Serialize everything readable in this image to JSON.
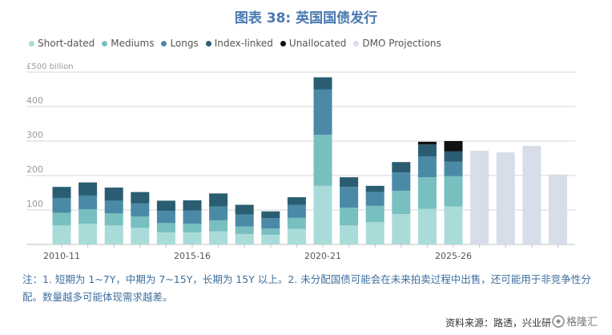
{
  "title": "图表 38: 英国国债发行",
  "legend": [
    {
      "label": "Short-dated",
      "color": "#a9dcd8"
    },
    {
      "label": "Mediums",
      "color": "#78bfc0"
    },
    {
      "label": "Longs",
      "color": "#4a8aa7"
    },
    {
      "label": "Index-linked",
      "color": "#2a5d72"
    },
    {
      "label": "Unallocated",
      "color": "#111111"
    },
    {
      "label": "DMO Projections",
      "color": "#d7dde9"
    }
  ],
  "chart_data": {
    "type": "bar",
    "stacked": true,
    "x_tick_labels": [
      "2010-11",
      "2015-16",
      "2020-21",
      "2025-26"
    ],
    "y_tick_labels": [
      "£500 billion",
      "400",
      "300",
      "200",
      "100"
    ],
    "ylim": [
      0,
      500
    ],
    "grid": true,
    "legend_position": "top",
    "series": [
      {
        "name": "Short-dated",
        "values": [
          55,
          60,
          55,
          48,
          35,
          35,
          38,
          30,
          28,
          45,
          170,
          55,
          65,
          88,
          103,
          110,
          0,
          0,
          0,
          0
        ]
      },
      {
        "name": "Mediums",
        "values": [
          37,
          42,
          35,
          33,
          27,
          25,
          32,
          22,
          18,
          32,
          148,
          52,
          47,
          68,
          92,
          88,
          0,
          0,
          0,
          0
        ]
      },
      {
        "name": "Longs",
        "values": [
          43,
          40,
          37,
          38,
          35,
          38,
          40,
          35,
          30,
          38,
          132,
          60,
          40,
          53,
          60,
          42,
          0,
          0,
          0,
          0
        ]
      },
      {
        "name": "Index-linked",
        "values": [
          32,
          38,
          38,
          33,
          30,
          30,
          38,
          28,
          20,
          22,
          35,
          28,
          18,
          30,
          35,
          30,
          0,
          0,
          0,
          0
        ]
      },
      {
        "name": "Unallocated",
        "values": [
          0,
          0,
          0,
          0,
          0,
          0,
          0,
          0,
          0,
          0,
          0,
          0,
          0,
          0,
          8,
          30,
          0,
          0,
          0,
          0
        ]
      },
      {
        "name": "DMO Projections",
        "values": [
          0,
          0,
          0,
          0,
          0,
          0,
          0,
          0,
          0,
          0,
          0,
          0,
          0,
          0,
          0,
          0,
          272,
          267,
          286,
          203
        ]
      }
    ]
  },
  "note": "注：1. 短期为 1~7Y，中期为 7~15Y，长期为 15Y 以上。2. 未分配国债可能会在未来拍卖过程中出售，还可能用于非竞争性分配。数量越多可能体现需求越差。",
  "source": "资料来源：路透，兴业研",
  "watermark": "格隆汇"
}
